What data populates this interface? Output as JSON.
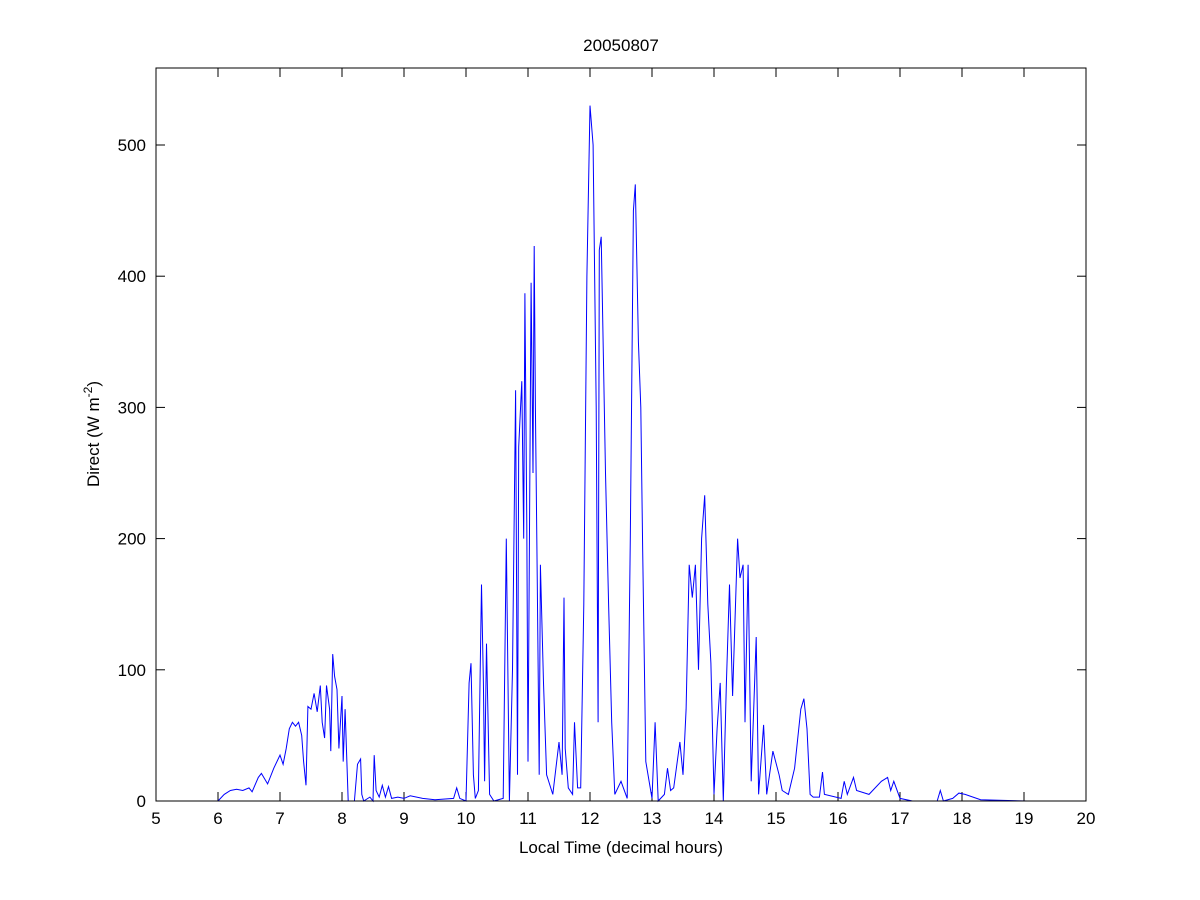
{
  "chart_data": {
    "type": "line",
    "title": "20050807",
    "xlabel": "Local Time (decimal hours)",
    "ylabel": "Direct (W m",
    "ylabel_sup": "-2",
    "ylabel_close": ")",
    "xlim": [
      5,
      20
    ],
    "ylim": [
      0,
      560
    ],
    "xticks": [
      5,
      6,
      7,
      8,
      9,
      10,
      11,
      12,
      13,
      14,
      15,
      16,
      17,
      18,
      19,
      20
    ],
    "yticks": [
      0,
      100,
      200,
      300,
      400,
      500
    ],
    "grid": false,
    "line_color": "#0000ff",
    "series": [
      {
        "points": [
          [
            5.4,
            0
          ],
          [
            6.0,
            0
          ],
          [
            6.1,
            5
          ],
          [
            6.2,
            8
          ],
          [
            6.3,
            9
          ],
          [
            6.4,
            8
          ],
          [
            6.5,
            10
          ],
          [
            6.55,
            7
          ],
          [
            6.65,
            18
          ],
          [
            6.7,
            21
          ],
          [
            6.8,
            13
          ],
          [
            6.9,
            25
          ],
          [
            7.0,
            35
          ],
          [
            7.05,
            28
          ],
          [
            7.1,
            40
          ],
          [
            7.15,
            55
          ],
          [
            7.2,
            60
          ],
          [
            7.25,
            57
          ],
          [
            7.3,
            60
          ],
          [
            7.35,
            50
          ],
          [
            7.38,
            30
          ],
          [
            7.42,
            12
          ],
          [
            7.45,
            72
          ],
          [
            7.5,
            70
          ],
          [
            7.55,
            82
          ],
          [
            7.6,
            68
          ],
          [
            7.65,
            88
          ],
          [
            7.68,
            60
          ],
          [
            7.72,
            48
          ],
          [
            7.75,
            88
          ],
          [
            7.8,
            70
          ],
          [
            7.82,
            38
          ],
          [
            7.85,
            112
          ],
          [
            7.88,
            95
          ],
          [
            7.92,
            85
          ],
          [
            7.95,
            40
          ],
          [
            8.0,
            80
          ],
          [
            8.02,
            30
          ],
          [
            8.05,
            70
          ],
          [
            8.1,
            0
          ],
          [
            8.2,
            0
          ],
          [
            8.25,
            28
          ],
          [
            8.3,
            32
          ],
          [
            8.32,
            5
          ],
          [
            8.35,
            0
          ],
          [
            8.45,
            3
          ],
          [
            8.5,
            0
          ],
          [
            8.52,
            35
          ],
          [
            8.55,
            8
          ],
          [
            8.6,
            3
          ],
          [
            8.65,
            12
          ],
          [
            8.7,
            3
          ],
          [
            8.75,
            11
          ],
          [
            8.8,
            2
          ],
          [
            8.9,
            3
          ],
          [
            9.0,
            2
          ],
          [
            9.1,
            4
          ],
          [
            9.3,
            2
          ],
          [
            9.5,
            1
          ],
          [
            9.8,
            2
          ],
          [
            9.85,
            10
          ],
          [
            9.9,
            2
          ],
          [
            10.0,
            0
          ],
          [
            10.05,
            90
          ],
          [
            10.08,
            105
          ],
          [
            10.12,
            20
          ],
          [
            10.15,
            2
          ],
          [
            10.2,
            8
          ],
          [
            10.25,
            165
          ],
          [
            10.28,
            90
          ],
          [
            10.3,
            15
          ],
          [
            10.33,
            120
          ],
          [
            10.38,
            5
          ],
          [
            10.45,
            0
          ],
          [
            10.6,
            2
          ],
          [
            10.65,
            200
          ],
          [
            10.7,
            0
          ],
          [
            10.75,
            100
          ],
          [
            10.8,
            313
          ],
          [
            10.83,
            20
          ],
          [
            10.85,
            270
          ],
          [
            10.9,
            320
          ],
          [
            10.93,
            200
          ],
          [
            10.95,
            387
          ],
          [
            10.98,
            210
          ],
          [
            11.0,
            30
          ],
          [
            11.05,
            395
          ],
          [
            11.08,
            250
          ],
          [
            11.1,
            423
          ],
          [
            11.12,
            300
          ],
          [
            11.15,
            165
          ],
          [
            11.18,
            20
          ],
          [
            11.2,
            180
          ],
          [
            11.25,
            90
          ],
          [
            11.3,
            20
          ],
          [
            11.4,
            5
          ],
          [
            11.5,
            45
          ],
          [
            11.55,
            20
          ],
          [
            11.58,
            155
          ],
          [
            11.6,
            40
          ],
          [
            11.65,
            10
          ],
          [
            11.72,
            5
          ],
          [
            11.75,
            60
          ],
          [
            11.8,
            10
          ],
          [
            11.85,
            10
          ],
          [
            11.9,
            150
          ],
          [
            11.95,
            400
          ],
          [
            12.0,
            530
          ],
          [
            12.05,
            500
          ],
          [
            12.1,
            300
          ],
          [
            12.13,
            60
          ],
          [
            12.15,
            420
          ],
          [
            12.18,
            430
          ],
          [
            12.2,
            380
          ],
          [
            12.25,
            250
          ],
          [
            12.3,
            150
          ],
          [
            12.35,
            60
          ],
          [
            12.4,
            5
          ],
          [
            12.5,
            15
          ],
          [
            12.6,
            2
          ],
          [
            12.65,
            200
          ],
          [
            12.7,
            450
          ],
          [
            12.73,
            470
          ],
          [
            12.78,
            350
          ],
          [
            12.82,
            300
          ],
          [
            12.85,
            190
          ],
          [
            12.9,
            30
          ],
          [
            13.0,
            2
          ],
          [
            13.05,
            60
          ],
          [
            13.1,
            0
          ],
          [
            13.2,
            5
          ],
          [
            13.25,
            25
          ],
          [
            13.3,
            8
          ],
          [
            13.35,
            10
          ],
          [
            13.45,
            45
          ],
          [
            13.5,
            20
          ],
          [
            13.55,
            70
          ],
          [
            13.6,
            180
          ],
          [
            13.65,
            155
          ],
          [
            13.7,
            180
          ],
          [
            13.75,
            100
          ],
          [
            13.8,
            200
          ],
          [
            13.85,
            233
          ],
          [
            13.9,
            150
          ],
          [
            13.95,
            105
          ],
          [
            14.0,
            5
          ],
          [
            14.05,
            55
          ],
          [
            14.1,
            90
          ],
          [
            14.15,
            0
          ],
          [
            14.2,
            90
          ],
          [
            14.25,
            165
          ],
          [
            14.3,
            80
          ],
          [
            14.38,
            200
          ],
          [
            14.42,
            170
          ],
          [
            14.47,
            180
          ],
          [
            14.5,
            60
          ],
          [
            14.55,
            180
          ],
          [
            14.6,
            15
          ],
          [
            14.68,
            125
          ],
          [
            14.72,
            5
          ],
          [
            14.8,
            58
          ],
          [
            14.85,
            5
          ],
          [
            14.95,
            38
          ],
          [
            15.05,
            20
          ],
          [
            15.1,
            8
          ],
          [
            15.2,
            5
          ],
          [
            15.3,
            25
          ],
          [
            15.4,
            70
          ],
          [
            15.45,
            78
          ],
          [
            15.5,
            55
          ],
          [
            15.55,
            5
          ],
          [
            15.6,
            3
          ],
          [
            15.7,
            3
          ],
          [
            15.75,
            22
          ],
          [
            15.78,
            5
          ],
          [
            16.05,
            2
          ],
          [
            16.1,
            15
          ],
          [
            16.15,
            5
          ],
          [
            16.25,
            18
          ],
          [
            16.3,
            8
          ],
          [
            16.5,
            5
          ],
          [
            16.7,
            15
          ],
          [
            16.8,
            18
          ],
          [
            16.85,
            8
          ],
          [
            16.9,
            15
          ],
          [
            17.0,
            2
          ],
          [
            17.2,
            0
          ],
          [
            17.6,
            0
          ],
          [
            17.65,
            8
          ],
          [
            17.7,
            0
          ],
          [
            17.85,
            2
          ],
          [
            17.95,
            6
          ],
          [
            18.05,
            5
          ],
          [
            18.3,
            1
          ],
          [
            19.05,
            0
          ]
        ]
      }
    ]
  }
}
